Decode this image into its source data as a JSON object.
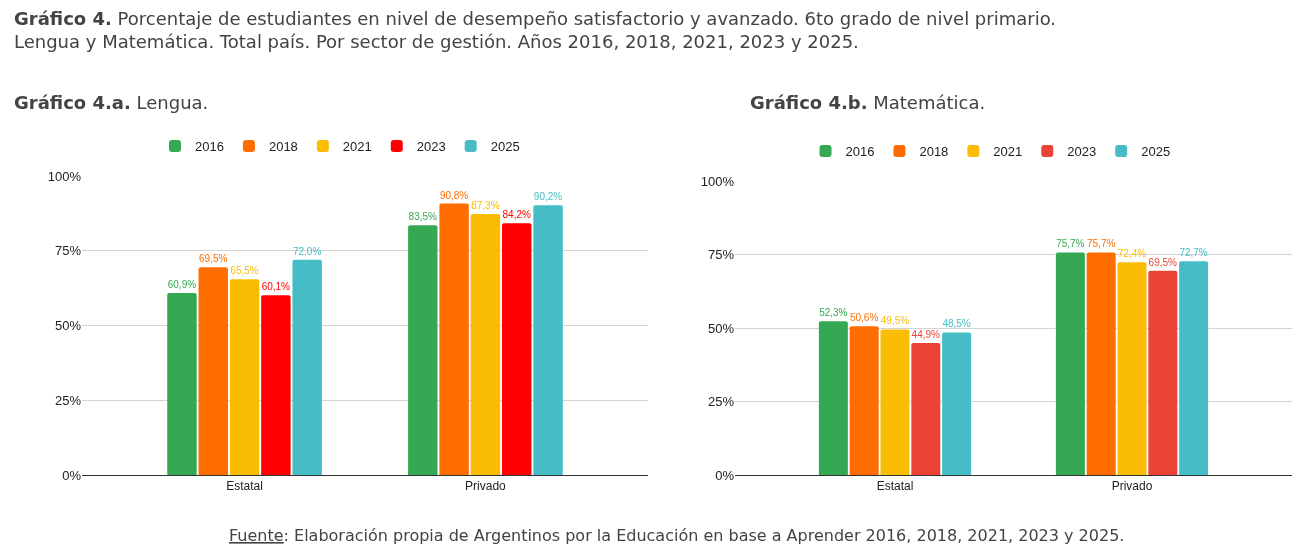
{
  "chart_data": [
    {
      "type": "bar",
      "title": "Gráfico 4. Porcentaje de estudiantes en nivel de desempeño satisfactorio y avanzado. 6to grado de nivel primario.\nLengua y Matemática. Total país. Por sector de gestión. Años 2016, 2018, 2021, 2023 y 2025.",
      "subtitle": "Gráfico 4.a. Lengua.",
      "categories": [
        "Estatal",
        "Privado"
      ],
      "series": [
        {
          "name": "2016",
          "color": "#34a853",
          "values": [
            60.9,
            83.5
          ],
          "value_labels": [
            "60,9%",
            "83,5%"
          ]
        },
        {
          "name": "2018",
          "color": "#ff6d01",
          "values": [
            69.5,
            90.8
          ],
          "value_labels": [
            "69,5%",
            "90,8%"
          ]
        },
        {
          "name": "2021",
          "color": "#fbbc04",
          "values": [
            65.5,
            87.3
          ],
          "value_labels": [
            "65,5%",
            "87,3%"
          ]
        },
        {
          "name": "2023",
          "color": "#ff0000",
          "values": [
            60.1,
            84.2
          ],
          "value_labels": [
            "60,1%",
            "84,2%"
          ]
        },
        {
          "name": "2025",
          "color": "#46bdc6",
          "values": [
            72.0,
            90.2
          ],
          "value_labels": [
            "72,0%",
            "90,2%"
          ]
        }
      ],
      "ylim": [
        0,
        100
      ],
      "yticks": [
        {
          "value": 0,
          "label": "0%"
        },
        {
          "value": 25,
          "label": "25%"
        },
        {
          "value": 50,
          "label": "50%"
        },
        {
          "value": 75,
          "label": "75%"
        },
        {
          "value": 100,
          "label": "100%"
        }
      ],
      "grid": "y",
      "legend": "top"
    },
    {
      "type": "bar",
      "title": "Gráfico 4.b. Matemática.",
      "categories": [
        "Estatal",
        "Privado"
      ],
      "series": [
        {
          "name": "2016",
          "color": "#34a853",
          "values": [
            52.3,
            75.7
          ],
          "value_labels": [
            "52,3%",
            "75,7%"
          ]
        },
        {
          "name": "2018",
          "color": "#ff6d01",
          "values": [
            50.6,
            75.7
          ],
          "value_labels": [
            "50,6%",
            "75,7%"
          ]
        },
        {
          "name": "2021",
          "color": "#fbbc04",
          "values": [
            49.5,
            72.4
          ],
          "value_labels": [
            "49,5%",
            "72,4%"
          ]
        },
        {
          "name": "2023",
          "color": "#ea4335",
          "values": [
            44.9,
            69.5
          ],
          "value_labels": [
            "44,9%",
            "69,5%"
          ]
        },
        {
          "name": "2025",
          "color": "#46bdc6",
          "values": [
            48.5,
            72.7
          ],
          "value_labels": [
            "48,5%",
            "72,7%"
          ]
        }
      ],
      "ylim": [
        0,
        100
      ],
      "yticks": [
        {
          "value": 0,
          "label": "0%"
        },
        {
          "value": 25,
          "label": "25%"
        },
        {
          "value": 50,
          "label": "50%"
        },
        {
          "value": 75,
          "label": "75%"
        },
        {
          "value": 100,
          "label": "100%"
        }
      ],
      "grid": "y",
      "legend": "top",
      "annotations": [
        "Fuente: Elaboración propia de Argentinos por la Educación en base a Aprender 2016, 2018, 2021, 2023 y 2025."
      ]
    }
  ]
}
